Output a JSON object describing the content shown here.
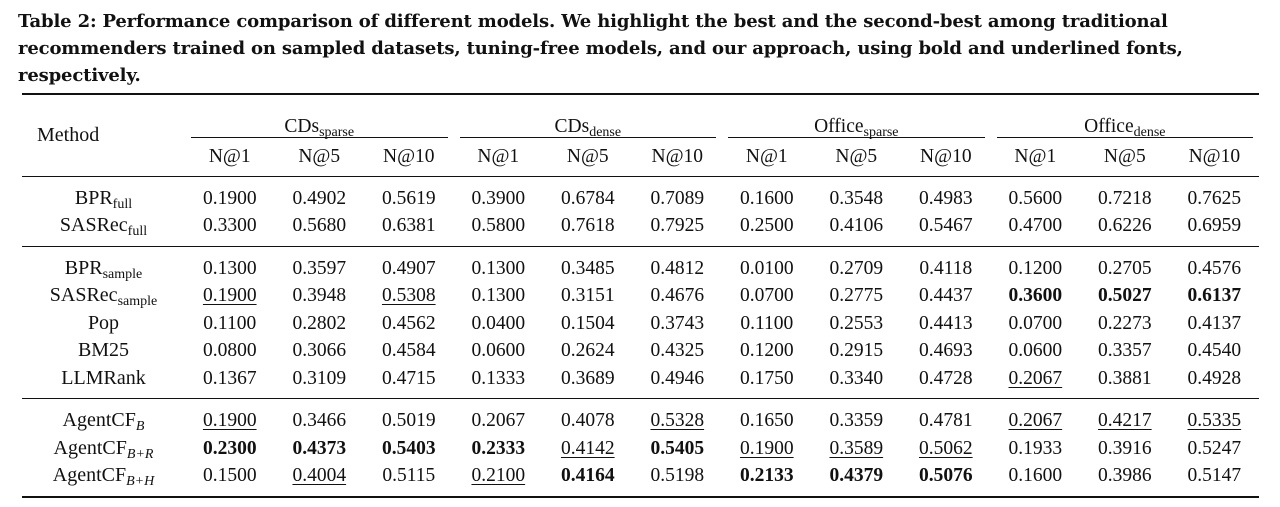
{
  "caption": {
    "label": "Table 2:",
    "text": "Performance comparison of different models. We highlight the best and the second-best among traditional recommenders trained on sampled datasets, tuning-free models, and our approach, using bold and underlined fonts, respectively."
  },
  "table": {
    "method_header": "Method",
    "groups": [
      {
        "name": "CDs",
        "sub": "sparse"
      },
      {
        "name": "CDs",
        "sub": "dense"
      },
      {
        "name": "Office",
        "sub": "sparse"
      },
      {
        "name": "Office",
        "sub": "dense"
      }
    ],
    "metrics": [
      "N@1",
      "N@5",
      "N@10",
      "N@1",
      "N@5",
      "N@10",
      "N@1",
      "N@5",
      "N@10",
      "N@1",
      "N@5",
      "N@10"
    ],
    "blocks": [
      [
        {
          "name": "BPR",
          "sub": "full",
          "values": [
            "0.1900",
            "0.4902",
            "0.5619",
            "0.3900",
            "0.6784",
            "0.7089",
            "0.1600",
            "0.3548",
            "0.4983",
            "0.5600",
            "0.7218",
            "0.7625"
          ],
          "styles": [
            "",
            "",
            "",
            "",
            "",
            "",
            "",
            "",
            "",
            "",
            "",
            ""
          ]
        },
        {
          "name": "SASRec",
          "sub": "full",
          "values": [
            "0.3300",
            "0.5680",
            "0.6381",
            "0.5800",
            "0.7618",
            "0.7925",
            "0.2500",
            "0.4106",
            "0.5467",
            "0.4700",
            "0.6226",
            "0.6959"
          ],
          "styles": [
            "",
            "",
            "",
            "",
            "",
            "",
            "",
            "",
            "",
            "",
            "",
            ""
          ]
        }
      ],
      [
        {
          "name": "BPR",
          "sub": "sample",
          "values": [
            "0.1300",
            "0.3597",
            "0.4907",
            "0.1300",
            "0.3485",
            "0.4812",
            "0.0100",
            "0.2709",
            "0.4118",
            "0.1200",
            "0.2705",
            "0.4576"
          ],
          "styles": [
            "",
            "",
            "",
            "",
            "",
            "",
            "",
            "",
            "",
            "",
            "",
            ""
          ]
        },
        {
          "name": "SASRec",
          "sub": "sample",
          "values": [
            "0.1900",
            "0.3948",
            "0.5308",
            "0.1300",
            "0.3151",
            "0.4676",
            "0.0700",
            "0.2775",
            "0.4437",
            "0.3600",
            "0.5027",
            "0.6137"
          ],
          "styles": [
            "second",
            "",
            "second",
            "",
            "",
            "",
            "",
            "",
            "",
            "best",
            "best",
            "best"
          ]
        },
        {
          "name": "Pop",
          "sub": "",
          "values": [
            "0.1100",
            "0.2802",
            "0.4562",
            "0.0400",
            "0.1504",
            "0.3743",
            "0.1100",
            "0.2553",
            "0.4413",
            "0.0700",
            "0.2273",
            "0.4137"
          ],
          "styles": [
            "",
            "",
            "",
            "",
            "",
            "",
            "",
            "",
            "",
            "",
            "",
            ""
          ]
        },
        {
          "name": "BM25",
          "sub": "",
          "values": [
            "0.0800",
            "0.3066",
            "0.4584",
            "0.0600",
            "0.2624",
            "0.4325",
            "0.1200",
            "0.2915",
            "0.4693",
            "0.0600",
            "0.3357",
            "0.4540"
          ],
          "styles": [
            "",
            "",
            "",
            "",
            "",
            "",
            "",
            "",
            "",
            "",
            "",
            ""
          ]
        },
        {
          "name": "LLMRank",
          "sub": "",
          "values": [
            "0.1367",
            "0.3109",
            "0.4715",
            "0.1333",
            "0.3689",
            "0.4946",
            "0.1750",
            "0.3340",
            "0.4728",
            "0.2067",
            "0.3881",
            "0.4928"
          ],
          "styles": [
            "",
            "",
            "",
            "",
            "",
            "",
            "",
            "",
            "",
            "second",
            "",
            ""
          ]
        }
      ],
      [
        {
          "name": "AgentCF",
          "sub": "B",
          "values": [
            "0.1900",
            "0.3466",
            "0.5019",
            "0.2067",
            "0.4078",
            "0.5328",
            "0.1650",
            "0.3359",
            "0.4781",
            "0.2067",
            "0.4217",
            "0.5335"
          ],
          "styles": [
            "second",
            "",
            "",
            "",
            "",
            "second",
            "",
            "",
            "",
            "second",
            "second",
            "second"
          ]
        },
        {
          "name": "AgentCF",
          "sub": "B+R",
          "values": [
            "0.2300",
            "0.4373",
            "0.5403",
            "0.2333",
            "0.4142",
            "0.5405",
            "0.1900",
            "0.3589",
            "0.5062",
            "0.1933",
            "0.3916",
            "0.5247"
          ],
          "styles": [
            "best",
            "best",
            "best",
            "best",
            "second",
            "best",
            "second",
            "second",
            "second",
            "",
            "",
            ""
          ]
        },
        {
          "name": "AgentCF",
          "sub": "B+H",
          "values": [
            "0.1500",
            "0.4004",
            "0.5115",
            "0.2100",
            "0.4164",
            "0.5198",
            "0.2133",
            "0.4379",
            "0.5076",
            "0.1600",
            "0.3986",
            "0.5147"
          ],
          "styles": [
            "",
            "second",
            "",
            "second",
            "best",
            "",
            "best",
            "best",
            "best",
            "",
            "",
            ""
          ]
        }
      ]
    ]
  }
}
